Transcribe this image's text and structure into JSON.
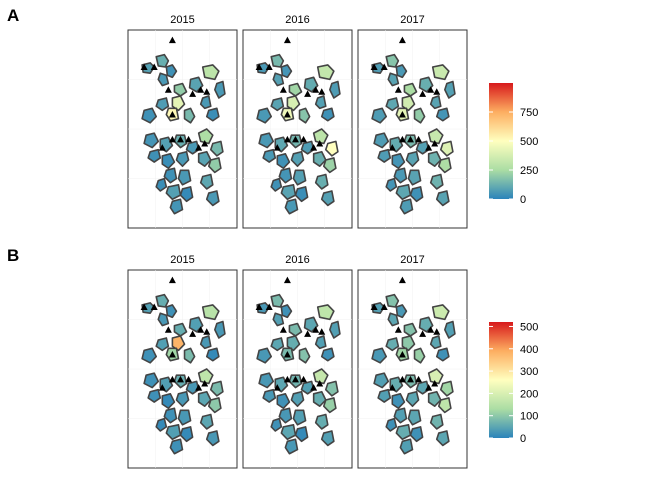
{
  "chart_data": [
    {
      "type": "map",
      "panel_label": "A",
      "facets": [
        "2015",
        "2016",
        "2017"
      ],
      "legend": {
        "ticks": [
          0,
          250,
          500,
          750
        ],
        "range": [
          0,
          1000
        ],
        "palette": [
          "#2b83ba",
          "#abdda4",
          "#ffffbf",
          "#fdae61",
          "#d7191c"
        ]
      },
      "values": [
        [
          80,
          120,
          40,
          60,
          300,
          90,
          60,
          420,
          520,
          40,
          70,
          150,
          60,
          30,
          200,
          260,
          50,
          80,
          120,
          60,
          40,
          30,
          60,
          90,
          150,
          200,
          40,
          60,
          80,
          30,
          20,
          50,
          100,
          60
        ],
        [
          60,
          150,
          50,
          80,
          320,
          110,
          70,
          380,
          450,
          60,
          90,
          180,
          80,
          40,
          230,
          300,
          60,
          100,
          140,
          70,
          60,
          40,
          80,
          120,
          500,
          220,
          50,
          80,
          90,
          40,
          30,
          60,
          120,
          80
        ],
        [
          70,
          180,
          60,
          90,
          340,
          120,
          80,
          360,
          420,
          70,
          100,
          200,
          90,
          50,
          250,
          330,
          70,
          110,
          150,
          80,
          70,
          50,
          90,
          130,
          400,
          260,
          60,
          90,
          100,
          50,
          40,
          70,
          130,
          90
        ]
      ]
    },
    {
      "type": "map",
      "panel_label": "B",
      "facets": [
        "2015",
        "2016",
        "2017"
      ],
      "legend": {
        "ticks": [
          0,
          100,
          200,
          300,
          400,
          500
        ],
        "range": [
          0,
          520
        ],
        "palette": [
          "#2b83ba",
          "#abdda4",
          "#ffffbf",
          "#fdae61",
          "#d7191c"
        ]
      },
      "values": [
        [
          40,
          60,
          20,
          30,
          150,
          40,
          30,
          380,
          120,
          20,
          40,
          80,
          30,
          10,
          60,
          160,
          20,
          40,
          60,
          30,
          20,
          10,
          30,
          50,
          80,
          100,
          20,
          30,
          40,
          10,
          10,
          20,
          50,
          30
        ],
        [
          30,
          80,
          20,
          40,
          160,
          50,
          40,
          60,
          80,
          30,
          50,
          90,
          40,
          20,
          80,
          170,
          30,
          50,
          70,
          40,
          30,
          20,
          40,
          60,
          90,
          110,
          30,
          40,
          50,
          20,
          10,
          30,
          60,
          40
        ],
        [
          40,
          90,
          30,
          50,
          180,
          60,
          40,
          100,
          120,
          30,
          60,
          110,
          50,
          20,
          90,
          200,
          40,
          60,
          80,
          50,
          40,
          20,
          50,
          70,
          120,
          160,
          40,
          50,
          60,
          20,
          20,
          40,
          70,
          50
        ]
      ]
    }
  ]
}
